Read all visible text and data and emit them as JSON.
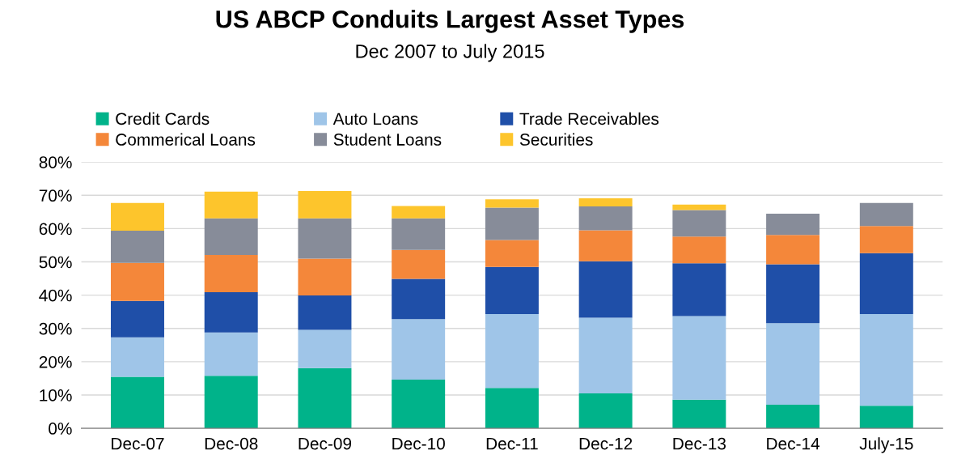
{
  "chart_data": {
    "type": "bar",
    "stacked": true,
    "title": "US ABCP Conduits Largest Asset Types",
    "subtitle": "Dec 2007 to July 2015",
    "categories": [
      "Dec-07",
      "Dec-08",
      "Dec-09",
      "Dec-10",
      "Dec-11",
      "Dec-12",
      "Dec-13",
      "Dec-14",
      "July-15"
    ],
    "series": [
      {
        "name": "Credit Cards",
        "color": "#00b38a",
        "values": [
          15.5,
          15.8,
          18.1,
          14.6,
          12.1,
          10.5,
          8.6,
          7.1,
          6.8
        ]
      },
      {
        "name": "Auto Loans",
        "color": "#9fc5e8",
        "values": [
          11.8,
          13.0,
          11.5,
          18.2,
          22.2,
          22.7,
          25.1,
          24.5,
          27.5
        ]
      },
      {
        "name": "Trade Receivables",
        "color": "#1f4fa8",
        "values": [
          11.0,
          12.1,
          10.3,
          12.1,
          14.2,
          17.0,
          15.9,
          17.7,
          18.3
        ]
      },
      {
        "name": "Commerical Loans",
        "color": "#f4873a",
        "values": [
          11.4,
          11.2,
          11.1,
          8.7,
          8.1,
          9.3,
          8.0,
          8.8,
          8.2
        ]
      },
      {
        "name": "Student Loans",
        "color": "#878c99",
        "values": [
          9.7,
          11.0,
          12.1,
          9.5,
          9.7,
          7.2,
          8.0,
          6.4,
          6.9
        ]
      },
      {
        "name": "Securities",
        "color": "#fdc52c",
        "values": [
          8.3,
          8.0,
          8.2,
          3.7,
          2.5,
          2.4,
          1.6,
          null,
          null
        ]
      }
    ],
    "ylim": [
      0,
      80
    ],
    "yticks": [
      {
        "value": 0,
        "label": "0%"
      },
      {
        "value": 10,
        "label": "10%"
      },
      {
        "value": 20,
        "label": "20%"
      },
      {
        "value": 30,
        "label": "30%"
      },
      {
        "value": 40,
        "label": "40%"
      },
      {
        "value": 50,
        "label": "50%"
      },
      {
        "value": 60,
        "label": "60%"
      },
      {
        "value": 70,
        "label": "70%"
      },
      {
        "value": 80,
        "label": "80%"
      }
    ],
    "grid": "y",
    "legend": "top"
  }
}
